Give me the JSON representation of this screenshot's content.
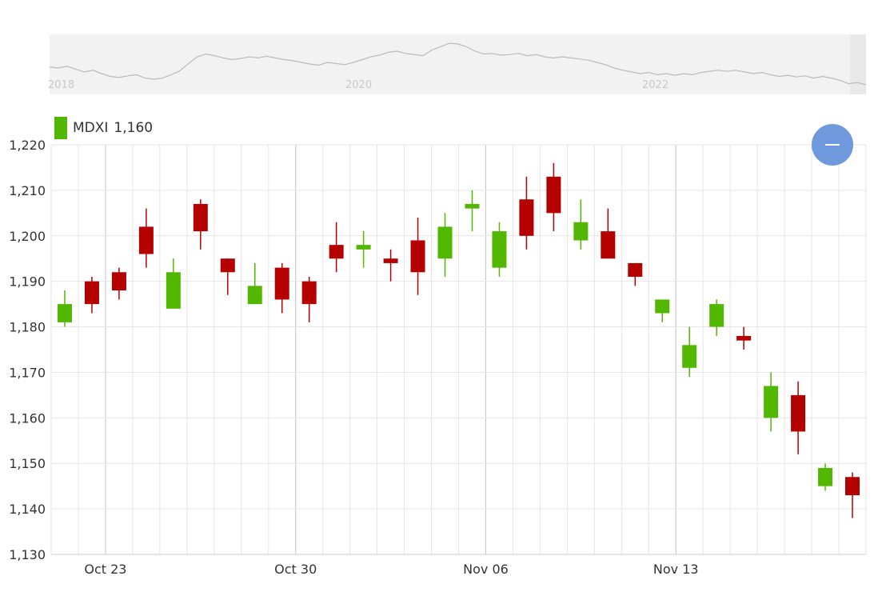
{
  "legend": {
    "symbol": "MDXI",
    "value": "1,160",
    "color": "#52b700"
  },
  "zoom_button": {
    "icon": "minus-icon"
  },
  "navigator": {
    "year_labels": [
      "2018",
      "2020",
      "2022"
    ],
    "series_values": [
      0.42,
      0.4,
      0.43,
      0.38,
      0.33,
      0.36,
      0.3,
      0.25,
      0.23,
      0.26,
      0.28,
      0.22,
      0.2,
      0.22,
      0.28,
      0.35,
      0.48,
      0.6,
      0.65,
      0.62,
      0.58,
      0.55,
      0.57,
      0.6,
      0.58,
      0.61,
      0.58,
      0.55,
      0.53,
      0.5,
      0.47,
      0.45,
      0.5,
      0.48,
      0.46,
      0.5,
      0.55,
      0.6,
      0.63,
      0.68,
      0.7,
      0.66,
      0.64,
      0.62,
      0.72,
      0.78,
      0.84,
      0.83,
      0.78,
      0.7,
      0.65,
      0.66,
      0.63,
      0.64,
      0.66,
      0.62,
      0.64,
      0.6,
      0.58,
      0.6,
      0.58,
      0.56,
      0.54,
      0.5,
      0.46,
      0.4,
      0.36,
      0.33,
      0.3,
      0.32,
      0.28,
      0.3,
      0.27,
      0.3,
      0.28,
      0.32,
      0.34,
      0.36,
      0.34,
      0.36,
      0.33,
      0.3,
      0.32,
      0.28,
      0.25,
      0.27,
      0.24,
      0.26,
      0.22,
      0.25,
      0.22,
      0.18,
      0.12,
      0.14,
      0.1
    ],
    "colors": {
      "background": "#f2f2f2",
      "line": "#bbbbbb",
      "text": "#c8c8c8"
    }
  },
  "chart_data": {
    "type": "candlestick",
    "series_name": "MDXI",
    "colors": {
      "up": "#52b700",
      "down": "#b50000",
      "grid": "#e6e6e6"
    },
    "ylim": [
      1130,
      1220
    ],
    "y_ticks": [
      "1,130",
      "1,140",
      "1,150",
      "1,160",
      "1,170",
      "1,180",
      "1,190",
      "1,200",
      "1,210",
      "1,220"
    ],
    "x_labels": [
      {
        "label": "Oct 23",
        "index": 1.5
      },
      {
        "label": "Oct 30",
        "index": 8.5
      },
      {
        "label": "Nov 06",
        "index": 15.5
      },
      {
        "label": "Nov 13",
        "index": 22.5
      }
    ],
    "grid": true,
    "legend_position": "top-left",
    "candles": [
      {
        "open": 1181,
        "high": 1188,
        "low": 1180,
        "close": 1185
      },
      {
        "open": 1190,
        "high": 1191,
        "low": 1183,
        "close": 1185
      },
      {
        "open": 1192,
        "high": 1193,
        "low": 1186,
        "close": 1188
      },
      {
        "open": 1202,
        "high": 1206,
        "low": 1193,
        "close": 1196
      },
      {
        "open": 1184,
        "high": 1195,
        "low": 1184,
        "close": 1192
      },
      {
        "open": 1207,
        "high": 1208,
        "low": 1197,
        "close": 1201
      },
      {
        "open": 1195,
        "high": 1195,
        "low": 1187,
        "close": 1192
      },
      {
        "open": 1185,
        "high": 1194,
        "low": 1185,
        "close": 1189
      },
      {
        "open": 1193,
        "high": 1194,
        "low": 1183,
        "close": 1186
      },
      {
        "open": 1190,
        "high": 1191,
        "low": 1181,
        "close": 1185
      },
      {
        "open": 1198,
        "high": 1203,
        "low": 1192,
        "close": 1195
      },
      {
        "open": 1197,
        "high": 1201,
        "low": 1193,
        "close": 1198
      },
      {
        "open": 1195,
        "high": 1197,
        "low": 1190,
        "close": 1194
      },
      {
        "open": 1199,
        "high": 1204,
        "low": 1187,
        "close": 1192
      },
      {
        "open": 1195,
        "high": 1205,
        "low": 1191,
        "close": 1202
      },
      {
        "open": 1206,
        "high": 1210,
        "low": 1201,
        "close": 1207
      },
      {
        "open": 1193,
        "high": 1203,
        "low": 1191,
        "close": 1201
      },
      {
        "open": 1208,
        "high": 1213,
        "low": 1197,
        "close": 1200
      },
      {
        "open": 1213,
        "high": 1216,
        "low": 1201,
        "close": 1205
      },
      {
        "open": 1199,
        "high": 1208,
        "low": 1197,
        "close": 1203
      },
      {
        "open": 1201,
        "high": 1206,
        "low": 1195,
        "close": 1195
      },
      {
        "open": 1194,
        "high": 1194,
        "low": 1189,
        "close": 1191
      },
      {
        "open": 1183,
        "high": 1186,
        "low": 1181,
        "close": 1186
      },
      {
        "open": 1171,
        "high": 1180,
        "low": 1169,
        "close": 1176
      },
      {
        "open": 1180,
        "high": 1186,
        "low": 1178,
        "close": 1185
      },
      {
        "open": 1178,
        "high": 1180,
        "low": 1175,
        "close": 1177
      },
      {
        "open": 1160,
        "high": 1170,
        "low": 1157,
        "close": 1167
      },
      {
        "open": 1165,
        "high": 1168,
        "low": 1152,
        "close": 1157
      },
      {
        "open": 1145,
        "high": 1150,
        "low": 1144,
        "close": 1149
      },
      {
        "open": 1147,
        "high": 1148,
        "low": 1138,
        "close": 1143
      }
    ]
  }
}
